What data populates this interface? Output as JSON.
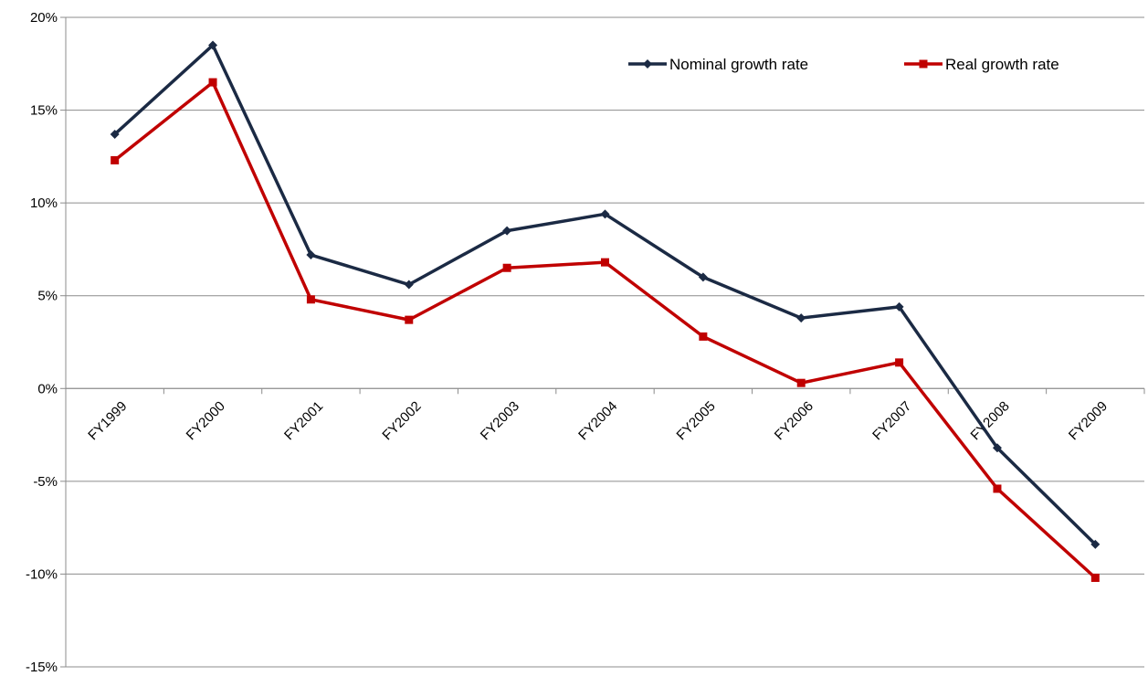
{
  "chart_data": {
    "type": "line",
    "title": "",
    "xlabel": "",
    "ylabel": "",
    "categories": [
      "FY1999",
      "FY2000",
      "FY2001",
      "FY2002",
      "FY2003",
      "FY2004",
      "FY2005",
      "FY2006",
      "FY2007",
      "FY2008",
      "FY2009"
    ],
    "ylim": [
      -15,
      20
    ],
    "y_ticks": [
      20,
      15,
      10,
      5,
      0,
      -5,
      -10,
      -15
    ],
    "y_tick_labels": [
      "20%",
      "15%",
      "10%",
      "5%",
      "0%",
      "-5%",
      "-10%",
      "-15%"
    ],
    "grid": true,
    "legend_position": "top-right",
    "series": [
      {
        "name": "Nominal growth rate",
        "color": "#1b2a44",
        "marker": "diamond",
        "values": [
          13.7,
          18.5,
          7.2,
          5.6,
          8.5,
          9.4,
          6.0,
          3.8,
          4.4,
          -3.2,
          -8.4
        ]
      },
      {
        "name": "Real growth rate",
        "color": "#c00000",
        "marker": "square",
        "values": [
          12.3,
          16.5,
          4.8,
          3.7,
          6.5,
          6.8,
          2.8,
          0.3,
          1.4,
          -5.4,
          -10.2
        ]
      }
    ]
  }
}
